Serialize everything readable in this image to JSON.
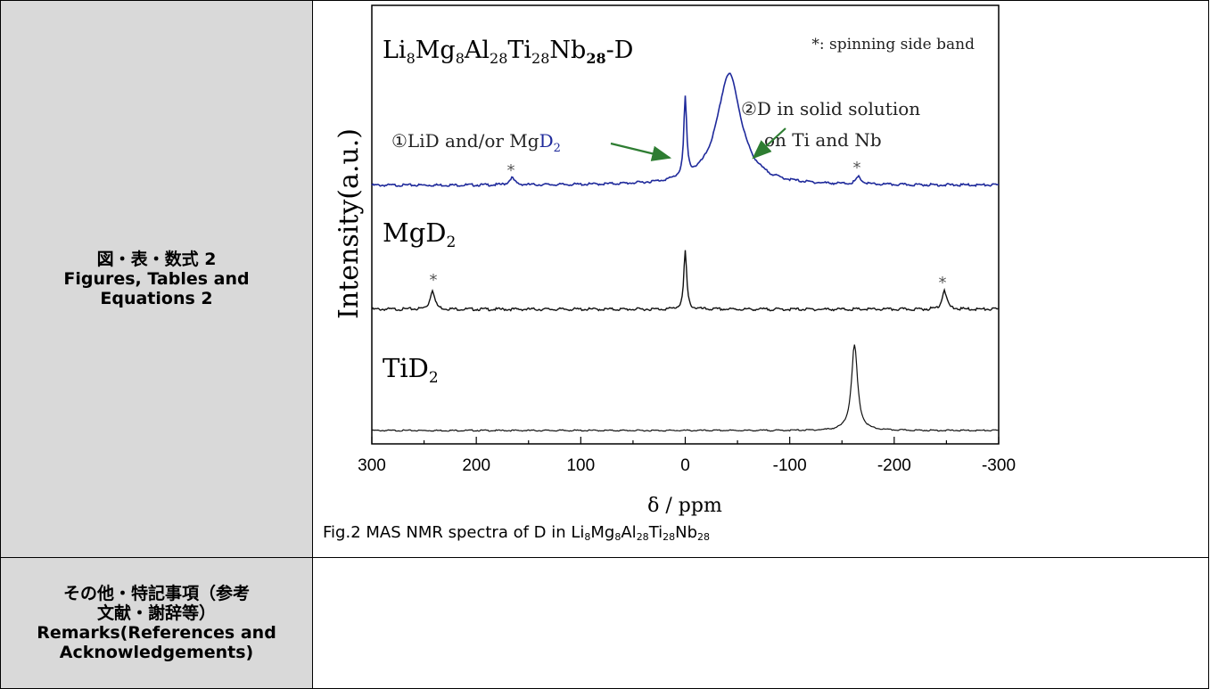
{
  "figures_row": {
    "label_line1": "図・表・数式 2",
    "label_line2": "Figures, Tables and",
    "label_line3": "Equations 2"
  },
  "remarks_row": {
    "label_line1": "その他・特記事項（参考",
    "label_line2": "文献・謝辞等）",
    "label_line3": "Remarks(References and",
    "label_line4": "Acknowledgements)"
  },
  "figure": {
    "caption_prefix": "Fig.2 MAS NMR spectra of D in Li",
    "caption_parts": [
      {
        "t": "8",
        "sub": true
      },
      {
        "t": "Mg",
        "sub": false
      },
      {
        "t": "8",
        "sub": true
      },
      {
        "t": "Al",
        "sub": false
      },
      {
        "t": "28",
        "sub": true
      },
      {
        "t": "Ti",
        "sub": false
      },
      {
        "t": "28",
        "sub": true
      },
      {
        "t": "Nb",
        "sub": false
      },
      {
        "t": "28",
        "sub": true
      }
    ],
    "sample_label_top": "Li8Mg8Al28Ti28Nb28-D",
    "sample_label_mid": "MgD2",
    "sample_label_bottom": "TiD2",
    "legend_note": "*: spinning side band",
    "annotation_1_line1": "①LiD and/or MgD2",
    "annotation_2_line1": "②D in solid solution",
    "annotation_2_line2": "on Ti and Nb",
    "sideband_marker": "*",
    "ylabel": "Intensity(a.u.)",
    "xlabel": "δ / ppm",
    "x_ticks": [
      "300",
      "200",
      "100",
      "0",
      "-100",
      "-200",
      "-300"
    ],
    "colors": {
      "top_spectrum": "#1f2a9b",
      "other_spectra": "#111111",
      "arrows": "#2e7d32",
      "annotation_D": "#1f2a9b"
    }
  },
  "chart_data": {
    "type": "line",
    "title": "",
    "xlabel": "δ / ppm",
    "ylabel": "Intensity(a.u.)",
    "xlim": [
      300,
      -300
    ],
    "x_ticks": [
      300,
      200,
      100,
      0,
      -100,
      -200,
      -300
    ],
    "series": [
      {
        "name": "Li8Mg8Al28Ti28Nb28-D",
        "peaks_ppm": [
          0,
          -42
        ],
        "sidebands_ppm": [
          166,
          -166
        ]
      },
      {
        "name": "MgD2",
        "peaks_ppm": [
          0
        ],
        "sidebands_ppm": [
          242,
          -248
        ]
      },
      {
        "name": "TiD2",
        "peaks_ppm": [
          -162
        ],
        "sidebands_ppm": []
      }
    ]
  }
}
